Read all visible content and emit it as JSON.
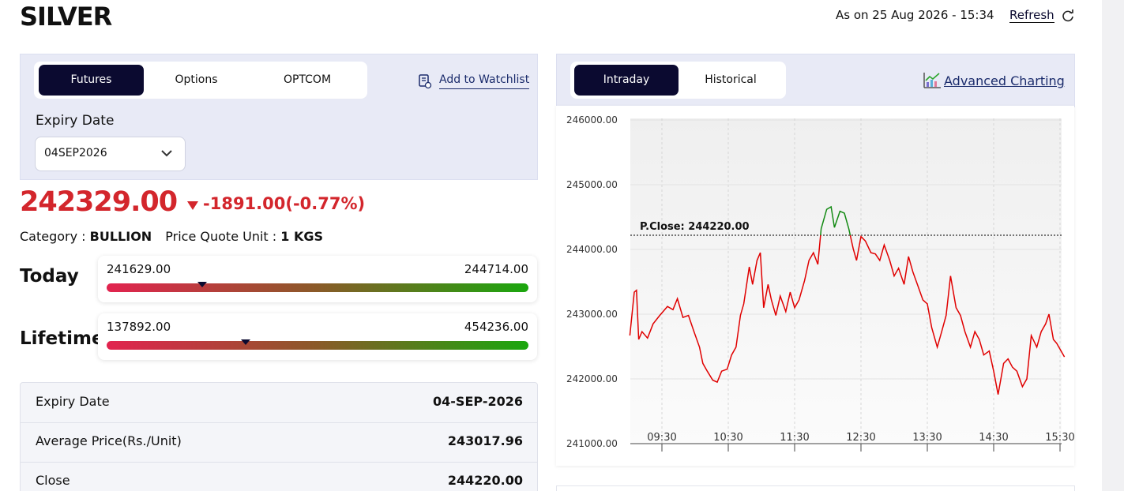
{
  "header": {
    "title": "SILVER",
    "as_on": "As on 25 Aug 2026 - 15:34",
    "refresh": "Refresh"
  },
  "left": {
    "tabs": [
      "Futures",
      "Options",
      "OPTCOM"
    ],
    "watchlist": "Add to Watchlist",
    "expiry_label": "Expiry Date",
    "expiry_value": "04SEP2026",
    "price": "242329.00",
    "change": "-1891.00(-0.77%)",
    "category_label": "Category :",
    "category": "BULLION",
    "unit_label": "Price Quote Unit :",
    "unit": "1 KGS",
    "ranges": [
      {
        "label": "Today",
        "low": "241629.00",
        "high": "244714.00"
      },
      {
        "label": "Lifetime",
        "low": "137892.00",
        "high": "454236.00"
      }
    ],
    "details": [
      [
        "Expiry Date",
        "04-SEP-2026"
      ],
      [
        "Average Price(Rs./Unit)",
        "243017.96"
      ],
      [
        "Close",
        "244220.00"
      ]
    ]
  },
  "right": {
    "tabs": [
      "Intraday",
      "Historical"
    ],
    "advanced": "Advanced Charting"
  },
  "chart_data": {
    "type": "line",
    "x": [
      "09:01",
      "09:05",
      "09:07",
      "09:09",
      "09:12",
      "09:17",
      "09:22",
      "09:28",
      "09:35",
      "09:40",
      "09:44",
      "09:49",
      "09:54",
      "09:59",
      "10:04",
      "10:07",
      "10:11",
      "10:16",
      "10:20",
      "10:24",
      "10:29",
      "10:33",
      "10:37",
      "10:41",
      "10:44",
      "10:49",
      "10:52",
      "10:56",
      "10:59",
      "11:02",
      "11:06",
      "11:09",
      "11:13",
      "11:17",
      "11:22",
      "11:26",
      "11:30",
      "11:34",
      "11:39",
      "11:43",
      "11:47",
      "11:51",
      "11:54",
      "11:59",
      "12:03",
      "12:06",
      "12:11",
      "12:15",
      "12:19",
      "12:23",
      "12:26",
      "12:30",
      "12:34",
      "12:39",
      "12:43",
      "12:47",
      "12:51",
      "12:56",
      "13:00",
      "13:04",
      "13:09",
      "13:13",
      "13:17",
      "13:21",
      "13:26",
      "13:30",
      "13:34",
      "13:39",
      "13:43",
      "13:47",
      "13:51",
      "13:56",
      "14:00",
      "14:04",
      "14:09",
      "14:13",
      "14:17",
      "14:21",
      "14:26",
      "14:30",
      "14:34",
      "14:39",
      "14:43",
      "14:47",
      "14:51",
      "14:56",
      "15:00",
      "15:04",
      "15:09",
      "15:13",
      "15:17",
      "15:20",
      "15:24",
      "15:27",
      "15:34"
    ],
    "values": [
      242670,
      243340,
      243370,
      242610,
      242730,
      242630,
      242850,
      242980,
      243120,
      243070,
      243240,
      242950,
      242980,
      242730,
      242490,
      242240,
      242120,
      241980,
      241950,
      242120,
      242150,
      242370,
      242490,
      242980,
      243160,
      243730,
      243460,
      243830,
      243950,
      243100,
      243460,
      243220,
      242980,
      243280,
      243040,
      243340,
      243100,
      243220,
      243520,
      243830,
      243950,
      243770,
      244320,
      244620,
      244660,
      244340,
      244590,
      244560,
      244320,
      244010,
      243830,
      244200,
      244130,
      243950,
      243930,
      243830,
      244070,
      243830,
      243590,
      243710,
      243460,
      243890,
      243650,
      243460,
      243220,
      243160,
      242790,
      242490,
      242730,
      242980,
      243590,
      243100,
      242980,
      242730,
      242490,
      242730,
      242610,
      242370,
      242430,
      242120,
      241760,
      242240,
      242310,
      242180,
      242120,
      241880,
      242000,
      242670,
      242490,
      242730,
      242850,
      243000,
      242610,
      242550,
      242340
    ],
    "color": "#e00000",
    "above_color": "#138a13",
    "reference": {
      "label": "P.Close: 244220.00",
      "value": 244220
    },
    "xlim": [
      "09:00",
      "15:35"
    ],
    "xticks": [
      "09:30",
      "10:30",
      "11:30",
      "12:30",
      "13:30",
      "14:30",
      "15:30"
    ],
    "ylim": [
      241000,
      246000
    ],
    "yticks": [
      {
        "value": 241000,
        "label": "241000.00"
      },
      {
        "value": 242000,
        "label": "242000.00"
      },
      {
        "value": 243000,
        "label": "243000.00"
      },
      {
        "value": 244000,
        "label": "244000.00"
      },
      {
        "value": 245000,
        "label": "245000.00"
      },
      {
        "value": 246000,
        "label": "246000.00"
      }
    ],
    "grid": true
  }
}
